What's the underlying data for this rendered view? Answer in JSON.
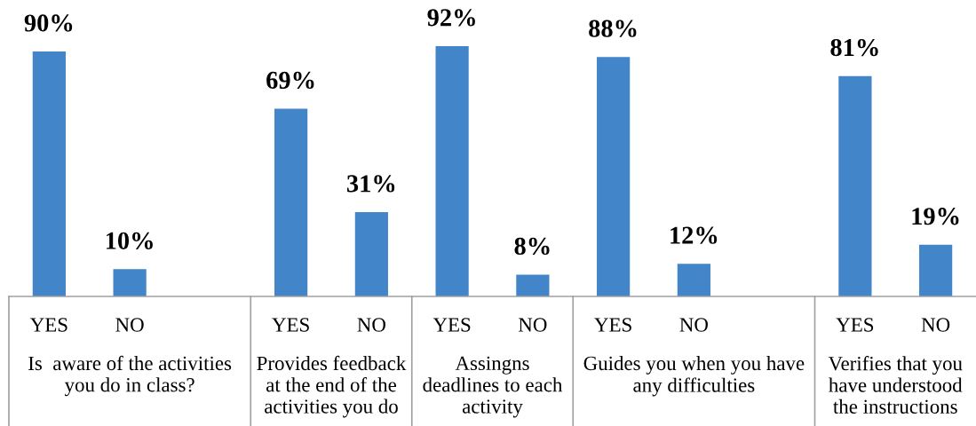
{
  "chart_data": {
    "type": "bar",
    "categories": [
      "YES",
      "NO",
      null,
      "YES",
      "NO",
      "YES",
      "NO",
      "YES",
      "NO",
      null,
      "YES",
      "NO"
    ],
    "values": [
      90,
      10,
      null,
      69,
      31,
      92,
      8,
      88,
      12,
      null,
      81,
      19
    ],
    "value_labels": [
      "90%",
      "10%",
      null,
      "69%",
      "31%",
      "92%",
      "8%",
      "88%",
      "12%",
      null,
      "81%",
      "19%"
    ],
    "color": "#4285c9",
    "annotations": [
      "Is  aware of the activities\nyou do in class?",
      "Provides feedback\nat the end of the\nactivities you do",
      "Assingns\ndeadlines to each\nactivity",
      "Guides you when you have\nany difficulties",
      "Verifies that you\nhave understood\nthe instructions"
    ]
  }
}
